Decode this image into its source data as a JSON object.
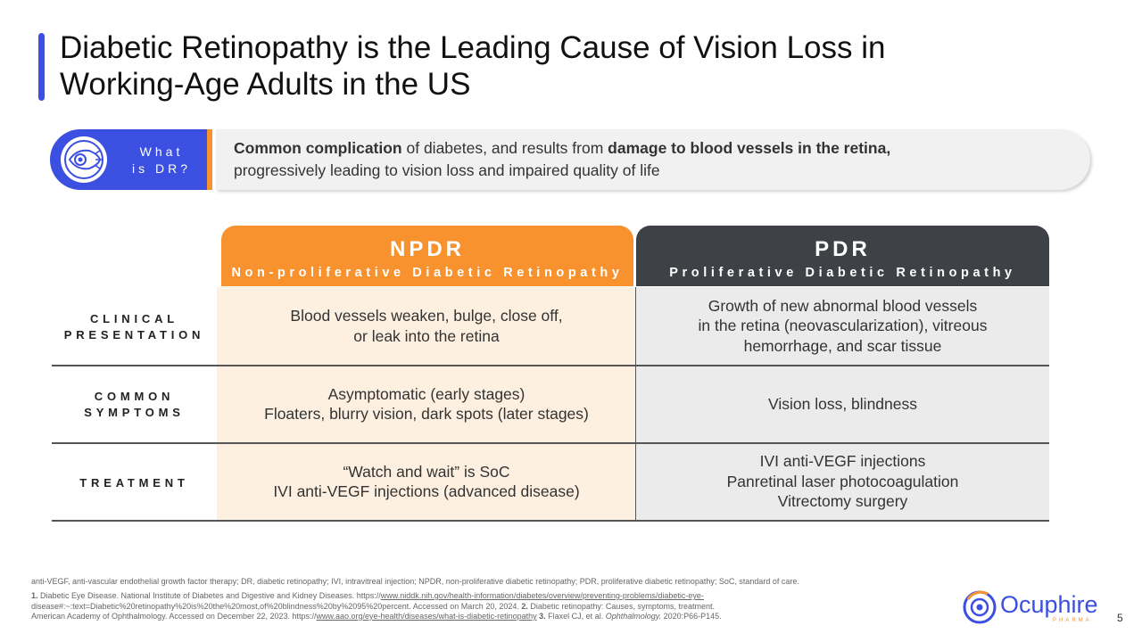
{
  "title": {
    "line1": "Diabetic Retinopathy is the Leading Cause of Vision Loss in",
    "line2": "Working-Age Adults in the US"
  },
  "what_is": {
    "label_line1": "What",
    "label_line2": "is DR?",
    "def_bold1": "Common complication",
    "def_text1": " of diabetes, and results from ",
    "def_bold2": "damage to blood vessels in the retina,",
    "def_text2": "progressively leading to vision loss and impaired quality of life"
  },
  "columns": {
    "npdr": {
      "abbr": "NPDR",
      "full": "Non-proliferative Diabetic Retinopathy"
    },
    "pdr": {
      "abbr": "PDR",
      "full": "Proliferative Diabetic Retinopathy"
    }
  },
  "rows": [
    {
      "label1": "CLINICAL",
      "label2": "PRESENTATION",
      "npdr": [
        "Blood vessels weaken, bulge, close off,",
        "or leak into the retina"
      ],
      "pdr": [
        "Growth of new abnormal blood vessels",
        "in the retina (neovascularization), vitreous",
        "hemorrhage, and scar tissue"
      ]
    },
    {
      "label1": "COMMON",
      "label2": "SYMPTOMS",
      "npdr": [
        "Asymptomatic (early stages)",
        "Floaters, blurry vision, dark spots (later stages)"
      ],
      "pdr": [
        "Vision loss, blindness"
      ]
    },
    {
      "label1": "TREATMENT",
      "npdr": [
        "“Watch and wait” is SoC",
        "IVI anti-VEGF injections (advanced disease)"
      ],
      "pdr": [
        "IVI anti-VEGF injections",
        "Panretinal laser photocoagulation",
        "Vitrectomy surgery"
      ]
    }
  ],
  "footnotes": {
    "abbrev": "anti-VEGF, anti-vascular endothelial growth factor therapy; DR, diabetic retinopathy; IVI, intravitreal injection; NPDR, non-proliferative diabetic retinopathy; PDR, proliferative diabetic retinopathy; SoC, standard of care.",
    "ref1_num": "1.",
    "ref1_text": " Diabetic Eye Disease. National Institute of Diabetes and Digestive and Kidney Diseases. https://",
    "ref1_link": "www.niddk.nih.gov/health-information/diabetes/overview/preventing-problems/diabetic-eye-",
    "ref1_line2": "disease#:~:text=Diabetic%20retinopathy%20is%20the%20most,of%20blindness%20by%2095%20percent. Accessed on March 20, 2024. ",
    "ref2_num": "2.",
    "ref2_text": " Diabetic retinopathy: Causes, symptoms, treatment.",
    "ref2_line3": "American Academy of Ophthalmology. Accessed on December 22, 2023. https://",
    "ref2_link": "www.aao.org/eye-health/diseases/what-is-diabetic-retinopathy",
    "ref3_num": " 3.",
    "ref3_text": " Flaxel CJ, et al. ",
    "ref3_journal": "Ophthalmology.",
    "ref3_tail": " 2020:P66-P145."
  },
  "logo": {
    "name": "Ocuphire",
    "sub": "PHARMA"
  },
  "page_number": "5",
  "colors": {
    "accent_blue": "#3b4fe0",
    "accent_orange": "#f7922f",
    "dark": "#3e4145"
  }
}
